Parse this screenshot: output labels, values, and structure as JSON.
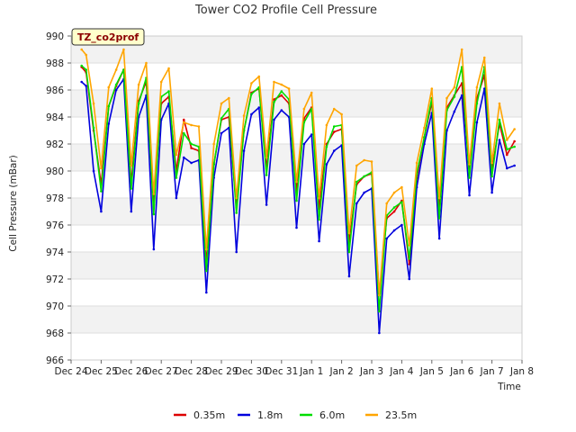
{
  "chart_data": {
    "type": "line",
    "title": "Tower CO2 Profile Cell Pressure",
    "xlabel": "Time",
    "ylabel": "Cell Pressure (mBar)",
    "tag": "TZ_co2prof",
    "ylim": [
      966,
      990
    ],
    "yticks": [
      966,
      968,
      970,
      972,
      974,
      976,
      978,
      980,
      982,
      984,
      986,
      988,
      990
    ],
    "xlim": [
      0,
      15
    ],
    "x_units": "days from Dec 24",
    "xtick_labels": [
      "Dec 24",
      "Dec 25",
      "Dec 26",
      "Dec 27",
      "Dec 28",
      "Dec 29",
      "Dec 30",
      "Dec 31",
      "Jan 1",
      "Jan 2",
      "Jan 3",
      "Jan 4",
      "Jan 5",
      "Jan 6",
      "Jan 7",
      "Jan 8"
    ],
    "grid": true,
    "legend_position": "bottom",
    "x": [
      0.35,
      0.5,
      0.75,
      1.0,
      1.25,
      1.5,
      1.75,
      2.0,
      2.25,
      2.5,
      2.75,
      3.0,
      3.25,
      3.5,
      3.75,
      4.0,
      4.25,
      4.5,
      4.75,
      5.0,
      5.25,
      5.5,
      5.75,
      6.0,
      6.25,
      6.5,
      6.75,
      7.0,
      7.25,
      7.5,
      7.75,
      8.0,
      8.25,
      8.5,
      8.75,
      9.0,
      9.25,
      9.5,
      9.75,
      10.0,
      10.25,
      10.5,
      10.75,
      11.0,
      11.25,
      11.5,
      11.75,
      12.0,
      12.25,
      12.5,
      12.75,
      13.0,
      13.25,
      13.5,
      13.75,
      14.0,
      14.25,
      14.5,
      14.75
    ],
    "series": [
      {
        "name": "0.35m",
        "color": "#dd0000",
        "values": [
          987.7,
          987.3,
          983.0,
          979.0,
          984.8,
          986.3,
          987.5,
          979.1,
          985.2,
          986.6,
          977.5,
          985.0,
          985.5,
          980.0,
          983.8,
          981.7,
          981.5,
          973.2,
          980.5,
          983.8,
          984.0,
          977.3,
          983.0,
          985.8,
          986.1,
          980.2,
          985.3,
          985.6,
          985.0,
          978.5,
          983.9,
          984.7,
          977.2,
          982.0,
          982.9,
          983.1,
          974.7,
          979.0,
          979.6,
          979.8,
          970.8,
          976.5,
          977.0,
          977.8,
          973.1,
          979.5,
          982.5,
          985.1,
          977.1,
          984.7,
          985.6,
          986.5,
          980.2,
          985.4,
          987.1,
          980.1,
          983.5,
          981.2,
          982.2
        ]
      },
      {
        "name": "1.8m",
        "color": "#0000dd",
        "values": [
          986.6,
          986.3,
          980.0,
          977.0,
          983.5,
          986.0,
          986.8,
          977.0,
          984.0,
          985.6,
          974.2,
          983.8,
          985.0,
          978.0,
          981.0,
          980.6,
          980.8,
          971.0,
          979.5,
          982.8,
          983.2,
          974.0,
          981.5,
          984.2,
          984.7,
          977.5,
          983.8,
          984.5,
          984.0,
          975.8,
          982.0,
          982.7,
          974.8,
          980.5,
          981.5,
          981.9,
          972.2,
          977.6,
          978.4,
          978.7,
          968.0,
          975.0,
          975.6,
          976.0,
          972.0,
          978.8,
          982.0,
          984.3,
          975.0,
          983.0,
          984.4,
          985.6,
          978.2,
          983.6,
          986.1,
          978.4,
          982.3,
          980.2,
          980.4
        ]
      },
      {
        "name": "6.0m",
        "color": "#00dd00",
        "values": [
          987.8,
          987.5,
          983.2,
          978.5,
          984.8,
          986.4,
          987.5,
          978.7,
          985.0,
          986.9,
          976.8,
          985.5,
          985.9,
          979.5,
          982.8,
          982.0,
          981.8,
          972.6,
          980.5,
          983.9,
          984.6,
          976.9,
          983.0,
          985.7,
          986.2,
          979.7,
          985.1,
          985.9,
          985.3,
          977.8,
          983.6,
          984.6,
          976.4,
          981.8,
          983.3,
          983.4,
          974.0,
          979.2,
          979.6,
          979.9,
          969.6,
          976.7,
          977.3,
          977.7,
          973.5,
          979.8,
          982.5,
          985.4,
          976.5,
          984.5,
          985.5,
          987.7,
          979.5,
          985.0,
          987.7,
          979.6,
          983.8,
          981.6,
          981.8
        ]
      },
      {
        "name": "23.5m",
        "color": "#ffa500",
        "values": [
          989.0,
          988.6,
          985.0,
          980.2,
          986.2,
          987.5,
          989.0,
          980.4,
          986.4,
          988.0,
          978.3,
          986.6,
          987.6,
          981.2,
          983.6,
          983.4,
          983.3,
          974.2,
          982.0,
          985.0,
          985.4,
          978.0,
          984.1,
          986.5,
          987.0,
          981.0,
          986.6,
          986.4,
          986.1,
          979.2,
          984.6,
          985.8,
          978.0,
          983.4,
          984.6,
          984.2,
          975.4,
          980.4,
          980.8,
          980.7,
          970.8,
          977.6,
          978.4,
          978.8,
          974.5,
          980.6,
          983.2,
          986.1,
          978.0,
          985.4,
          986.2,
          989.0,
          980.5,
          986.2,
          988.4,
          980.6,
          985.0,
          982.3,
          983.1
        ]
      }
    ]
  }
}
